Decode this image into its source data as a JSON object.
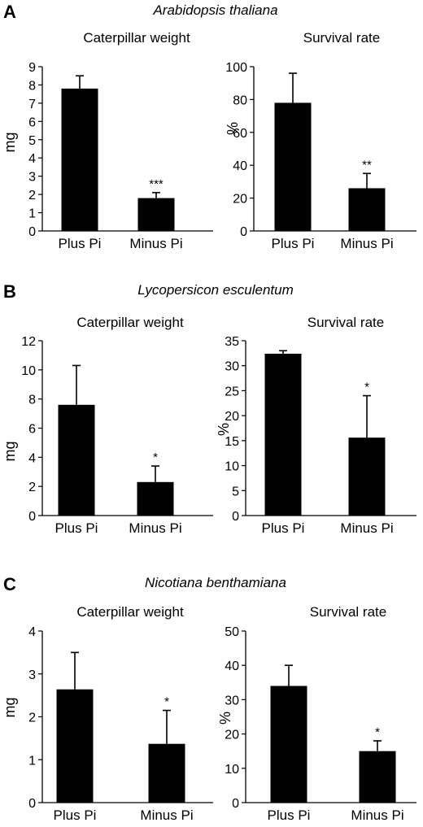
{
  "panels": [
    {
      "letter": "A",
      "species": "Arabidopsis thaliana",
      "charts": [
        {
          "title": "Caterpillar weight",
          "ylabel": "mg",
          "ylim": [
            0,
            9
          ],
          "ticks": [
            0,
            1,
            2,
            3,
            4,
            5,
            6,
            7,
            8,
            9
          ]
        },
        {
          "title": "Survival rate",
          "ylabel": "%",
          "ylim": [
            0,
            100
          ],
          "ticks": [
            0,
            20,
            40,
            60,
            80,
            100
          ]
        }
      ]
    },
    {
      "letter": "B",
      "species": "Lycopersicon esculentum",
      "charts": [
        {
          "title": "Caterpillar weight",
          "ylabel": "mg",
          "ylim": [
            0,
            12
          ],
          "ticks": [
            0,
            2,
            4,
            6,
            8,
            10,
            12
          ]
        },
        {
          "title": "Survival rate",
          "ylabel": "%",
          "ylim": [
            0,
            35
          ],
          "ticks": [
            0,
            5,
            10,
            15,
            20,
            25,
            30,
            35
          ]
        }
      ]
    },
    {
      "letter": "C",
      "species": "Nicotiana benthamiana",
      "charts": [
        {
          "title": "Caterpillar weight",
          "ylabel": "mg",
          "ylim": [
            0,
            4
          ],
          "ticks": [
            0,
            1,
            2,
            3,
            4
          ]
        },
        {
          "title": "Survival rate",
          "ylabel": "%",
          "ylim": [
            0,
            50
          ],
          "ticks": [
            0,
            10,
            20,
            30,
            40,
            50
          ]
        }
      ]
    }
  ],
  "chart_data": [
    {
      "type": "bar",
      "title": "Caterpillar weight",
      "ylabel": "mg",
      "categories": [
        "Plus Pi",
        "Minus Pi"
      ],
      "values": [
        7.8,
        1.8
      ],
      "errors": [
        0.7,
        0.3
      ],
      "significance": [
        "",
        "***"
      ],
      "ylim": [
        0,
        9
      ],
      "grid": false
    },
    {
      "type": "bar",
      "title": "Survival rate",
      "ylabel": "%",
      "categories": [
        "Plus Pi",
        "Minus Pi"
      ],
      "values": [
        78,
        26
      ],
      "errors": [
        18,
        9
      ],
      "significance": [
        "",
        "**"
      ],
      "ylim": [
        0,
        100
      ],
      "grid": false
    },
    {
      "type": "bar",
      "title": "Caterpillar weight",
      "ylabel": "mg",
      "categories": [
        "Plus Pi",
        "Minus Pi"
      ],
      "values": [
        7.6,
        2.3
      ],
      "errors": [
        2.7,
        1.1
      ],
      "significance": [
        "",
        "*"
      ],
      "ylim": [
        0,
        12
      ],
      "grid": false
    },
    {
      "type": "bar",
      "title": "Survival rate",
      "ylabel": "%",
      "categories": [
        "Plus Pi",
        "Minus Pi"
      ],
      "values": [
        32.4,
        15.6
      ],
      "errors": [
        0.6,
        8.4
      ],
      "significance": [
        "",
        "*"
      ],
      "ylim": [
        0,
        35
      ],
      "grid": false
    },
    {
      "type": "bar",
      "title": "Caterpillar weight",
      "ylabel": "mg",
      "categories": [
        "Plus Pi",
        "Minus Pi"
      ],
      "values": [
        2.64,
        1.37
      ],
      "errors": [
        0.86,
        0.78
      ],
      "significance": [
        "",
        "*"
      ],
      "ylim": [
        0,
        4
      ],
      "grid": false
    },
    {
      "type": "bar",
      "title": "Survival rate",
      "ylabel": "%",
      "categories": [
        "Plus Pi",
        "Minus Pi"
      ],
      "values": [
        34,
        15
      ],
      "errors": [
        6,
        3
      ],
      "significance": [
        "",
        "*"
      ],
      "ylim": [
        0,
        50
      ],
      "grid": false
    }
  ]
}
